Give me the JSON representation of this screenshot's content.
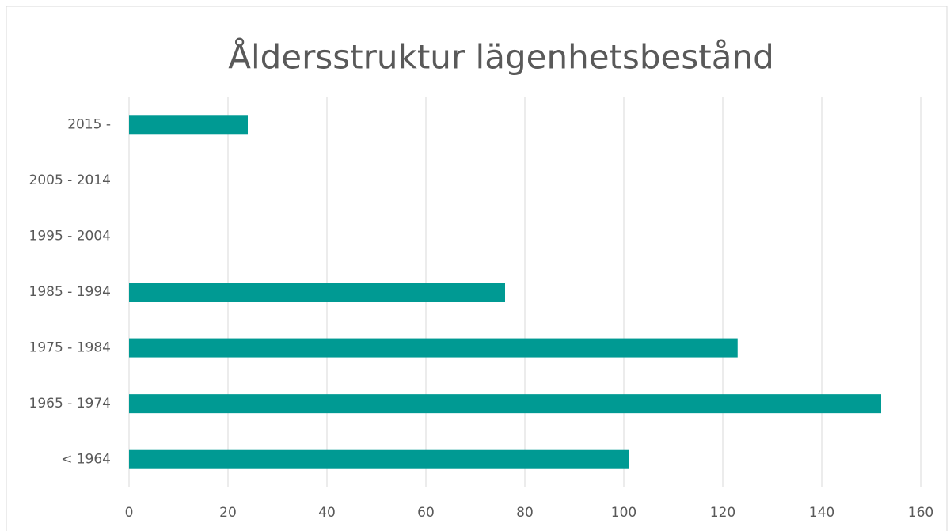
{
  "chart_data": {
    "type": "barh",
    "title": "Åldersstruktur lägenhetsbestånd",
    "categories": [
      "2015 -",
      "2005 - 2014",
      "1995 - 2004",
      "1985 - 1994",
      "1975 - 1984",
      "1965 - 1974",
      "< 1964"
    ],
    "values": [
      24,
      0,
      0,
      76,
      123,
      152,
      101
    ],
    "color": "#009a93",
    "xlim": [
      0,
      160
    ],
    "xticks": [
      0,
      20,
      40,
      60,
      80,
      100,
      120,
      140,
      160
    ],
    "grid": true
  }
}
